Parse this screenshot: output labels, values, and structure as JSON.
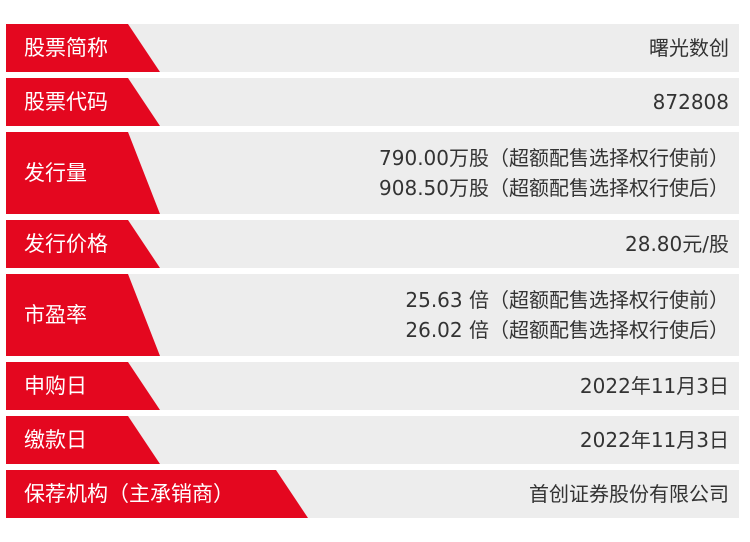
{
  "rows": [
    {
      "label": "股票简称",
      "values": [
        "曙光数创"
      ]
    },
    {
      "label": "股票代码",
      "values": [
        "872808"
      ]
    },
    {
      "label": "发行量",
      "values": [
        "790.00万股（超额配售选择权行使前）",
        "908.50万股（超额配售选择权行使后）"
      ]
    },
    {
      "label": "发行价格",
      "values": [
        "28.80元/股"
      ]
    },
    {
      "label": "市盈率",
      "values": [
        "25.63 倍（超额配售选择权行使前）",
        "26.02 倍（超额配售选择权行使后）"
      ]
    },
    {
      "label": "申购日",
      "values": [
        "2022年11月3日"
      ]
    },
    {
      "label": "缴款日",
      "values": [
        "2022年11月3日"
      ]
    },
    {
      "label": "保荐机构（主承销商）",
      "values": [
        "首创证券股份有限公司"
      ]
    }
  ],
  "colors": {
    "accent": "#e4071f",
    "row_background": "#ededed",
    "label_text": "#ffffff",
    "value_text": "#333333"
  }
}
